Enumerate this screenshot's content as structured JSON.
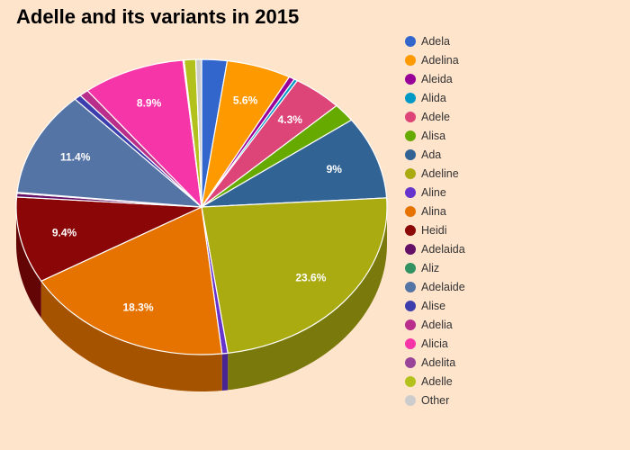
{
  "chart_data": {
    "type": "pie",
    "title": "Adelle and its variants in 2015",
    "slices": [
      {
        "label": "Adela",
        "value": 2.2,
        "color": "#3366cc",
        "display": ""
      },
      {
        "label": "Adelina",
        "value": 5.6,
        "color": "#ff9900",
        "display": "5.6%"
      },
      {
        "label": "Aleida",
        "value": 0.5,
        "color": "#990099",
        "display": ""
      },
      {
        "label": "Alida",
        "value": 0.3,
        "color": "#0099c6",
        "display": ""
      },
      {
        "label": "Adele",
        "value": 4.3,
        "color": "#dd4477",
        "display": "4.3%"
      },
      {
        "label": "Alisa",
        "value": 2.0,
        "color": "#66aa00",
        "display": ""
      },
      {
        "label": "Ada",
        "value": 9.0,
        "color": "#316395",
        "display": "9%"
      },
      {
        "label": "Adeline",
        "value": 23.6,
        "color": "#aaaa11",
        "display": "23.6%"
      },
      {
        "label": "Aline",
        "value": 0.5,
        "color": "#6633cc",
        "display": ""
      },
      {
        "label": "Alina",
        "value": 18.3,
        "color": "#e67300",
        "display": "18.3%"
      },
      {
        "label": "Heidi",
        "value": 9.4,
        "color": "#8b0707",
        "display": "9.4%"
      },
      {
        "label": "Adelaida",
        "value": 0.4,
        "color": "#651067",
        "display": ""
      },
      {
        "label": "Aliz",
        "value": 0.1,
        "color": "#329262",
        "display": ""
      },
      {
        "label": "Adelaide",
        "value": 11.4,
        "color": "#5574a6",
        "display": "11.4%"
      },
      {
        "label": "Alise",
        "value": 0.6,
        "color": "#3b3eac",
        "display": ""
      },
      {
        "label": "Adelia",
        "value": 0.8,
        "color": "#b82e8a",
        "display": ""
      },
      {
        "label": "Alicia",
        "value": 8.9,
        "color": "#f535a8",
        "display": "8.9%"
      },
      {
        "label": "Adelita",
        "value": 0.1,
        "color": "#994499",
        "display": ""
      },
      {
        "label": "Adelle",
        "value": 1.0,
        "color": "#b3c11c",
        "display": ""
      },
      {
        "label": "Other",
        "value": 0.5,
        "color": "#cccccc",
        "display": ""
      }
    ],
    "legend_position": "right"
  }
}
